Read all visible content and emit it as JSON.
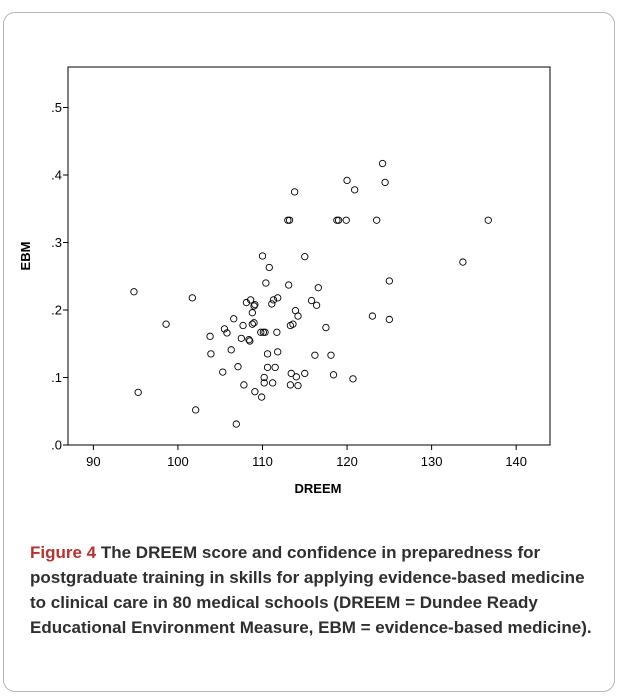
{
  "chart_data": {
    "type": "scatter",
    "xlabel": "DREEM",
    "ylabel": "EBM",
    "xlim": [
      87,
      144
    ],
    "ylim": [
      0,
      0.56
    ],
    "x_ticks": [
      90,
      100,
      110,
      120,
      130,
      140
    ],
    "x_tick_labels": [
      "90",
      "100",
      "110",
      "120",
      "130",
      "140"
    ],
    "y_ticks": [
      0,
      0.1,
      0.2,
      0.3,
      0.4,
      0.5
    ],
    "y_tick_labels": [
      ".0",
      ".1",
      ".2",
      ".3",
      ".4",
      ".5"
    ],
    "grid": false,
    "marker": "open-circle",
    "points": [
      {
        "x": 94.8,
        "y": 0.227
      },
      {
        "x": 95.3,
        "y": 0.078
      },
      {
        "x": 98.6,
        "y": 0.179
      },
      {
        "x": 101.7,
        "y": 0.218
      },
      {
        "x": 102.1,
        "y": 0.052
      },
      {
        "x": 103.8,
        "y": 0.161
      },
      {
        "x": 103.9,
        "y": 0.135
      },
      {
        "x": 105.3,
        "y": 0.108
      },
      {
        "x": 105.5,
        "y": 0.172
      },
      {
        "x": 105.8,
        "y": 0.166
      },
      {
        "x": 106.3,
        "y": 0.141
      },
      {
        "x": 106.6,
        "y": 0.187
      },
      {
        "x": 106.9,
        "y": 0.031
      },
      {
        "x": 107.1,
        "y": 0.116
      },
      {
        "x": 107.5,
        "y": 0.158
      },
      {
        "x": 107.7,
        "y": 0.177
      },
      {
        "x": 107.8,
        "y": 0.089
      },
      {
        "x": 108.1,
        "y": 0.211
      },
      {
        "x": 108.4,
        "y": 0.156
      },
      {
        "x": 108.5,
        "y": 0.154
      },
      {
        "x": 108.6,
        "y": 0.215
      },
      {
        "x": 108.8,
        "y": 0.179
      },
      {
        "x": 108.8,
        "y": 0.196
      },
      {
        "x": 109.0,
        "y": 0.181
      },
      {
        "x": 109.0,
        "y": 0.206
      },
      {
        "x": 109.1,
        "y": 0.208
      },
      {
        "x": 109.1,
        "y": 0.079
      },
      {
        "x": 109.8,
        "y": 0.167
      },
      {
        "x": 109.9,
        "y": 0.071
      },
      {
        "x": 110.0,
        "y": 0.28
      },
      {
        "x": 110.1,
        "y": 0.167
      },
      {
        "x": 110.2,
        "y": 0.092
      },
      {
        "x": 110.2,
        "y": 0.1
      },
      {
        "x": 110.3,
        "y": 0.167
      },
      {
        "x": 110.4,
        "y": 0.24
      },
      {
        "x": 110.6,
        "y": 0.115
      },
      {
        "x": 110.6,
        "y": 0.135
      },
      {
        "x": 110.8,
        "y": 0.263
      },
      {
        "x": 111.1,
        "y": 0.209
      },
      {
        "x": 111.2,
        "y": 0.092
      },
      {
        "x": 111.3,
        "y": 0.215
      },
      {
        "x": 111.5,
        "y": 0.115
      },
      {
        "x": 111.7,
        "y": 0.167
      },
      {
        "x": 111.8,
        "y": 0.138
      },
      {
        "x": 111.8,
        "y": 0.218
      },
      {
        "x": 113.0,
        "y": 0.333
      },
      {
        "x": 113.1,
        "y": 0.237
      },
      {
        "x": 113.2,
        "y": 0.333
      },
      {
        "x": 113.3,
        "y": 0.177
      },
      {
        "x": 113.3,
        "y": 0.089
      },
      {
        "x": 113.4,
        "y": 0.106
      },
      {
        "x": 113.6,
        "y": 0.179
      },
      {
        "x": 113.8,
        "y": 0.375
      },
      {
        "x": 113.9,
        "y": 0.199
      },
      {
        "x": 114.0,
        "y": 0.101
      },
      {
        "x": 114.2,
        "y": 0.088
      },
      {
        "x": 114.2,
        "y": 0.191
      },
      {
        "x": 115.0,
        "y": 0.279
      },
      {
        "x": 115.0,
        "y": 0.106
      },
      {
        "x": 115.8,
        "y": 0.214
      },
      {
        "x": 116.2,
        "y": 0.133
      },
      {
        "x": 116.4,
        "y": 0.207
      },
      {
        "x": 116.6,
        "y": 0.233
      },
      {
        "x": 117.5,
        "y": 0.174
      },
      {
        "x": 118.1,
        "y": 0.133
      },
      {
        "x": 118.4,
        "y": 0.104
      },
      {
        "x": 118.8,
        "y": 0.333
      },
      {
        "x": 119.0,
        "y": 0.333
      },
      {
        "x": 119.9,
        "y": 0.333
      },
      {
        "x": 120.0,
        "y": 0.392
      },
      {
        "x": 120.7,
        "y": 0.098
      },
      {
        "x": 120.9,
        "y": 0.378
      },
      {
        "x": 123.0,
        "y": 0.191
      },
      {
        "x": 123.5,
        "y": 0.333
      },
      {
        "x": 124.2,
        "y": 0.417
      },
      {
        "x": 124.5,
        "y": 0.389
      },
      {
        "x": 125.0,
        "y": 0.186
      },
      {
        "x": 125.0,
        "y": 0.243
      },
      {
        "x": 133.7,
        "y": 0.271
      },
      {
        "x": 136.7,
        "y": 0.333
      }
    ]
  },
  "caption": {
    "label": "Figure 4",
    "text": " The DREEM score and confidence in preparedness for postgraduate training in skills for applying evidence-based medicine to clinical care in 80 medical schools (DREEM = Dundee Ready Educational Environment Measure, EBM = evidence-based medicine)."
  },
  "colors": {
    "caption_label": "#b8322f",
    "caption_text": "#2f2f2f",
    "axis": "#000000",
    "frame": "#b5b5b5"
  }
}
